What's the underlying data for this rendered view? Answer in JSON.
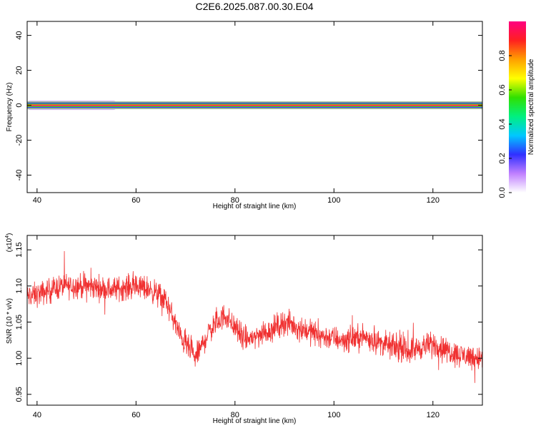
{
  "title": "C2E6.2025.087.00.30.E04",
  "colors": {
    "signal": "#f03030",
    "axis": "#000000",
    "band_line": "#2a6e2a"
  },
  "chart_data": [
    {
      "type": "heatmap",
      "xlabel": "Height of straight line (km)",
      "ylabel": "Frequency (Hz)",
      "xlim": [
        38,
        130
      ],
      "ylim": [
        -50,
        48
      ],
      "x_ticks": [
        40,
        60,
        80,
        100,
        120
      ],
      "y_ticks": [
        -40,
        -20,
        0,
        20,
        40
      ],
      "grid": false,
      "colorbar": {
        "label": "Normalized spectral amplitude",
        "range": [
          0,
          1
        ],
        "ticks": [
          0.0,
          0.2,
          0.4,
          0.6,
          0.8
        ],
        "tick_labels": [
          "0.0",
          "0.2",
          "0.4",
          "0.6",
          "0.8"
        ],
        "colormap": [
          "#ffffff",
          "#c080ff",
          "#3030ff",
          "#00c8ff",
          "#00f080",
          "#30e000",
          "#ffff00",
          "#ffa000",
          "#ff2020",
          "#ff0080"
        ]
      },
      "band": {
        "center_freq": 0,
        "halfwidth_by_amplitude": [
          {
            "amplitude": 0.05,
            "halfwidth": 2.2
          },
          {
            "amplitude": 0.2,
            "halfwidth": 1.4
          },
          {
            "amplitude": 0.5,
            "halfwidth": 0.9
          },
          {
            "amplitude": 0.8,
            "halfwidth": 0.5
          },
          {
            "amplitude": 1.0,
            "halfwidth": 0.25
          }
        ],
        "spread_x_range": [
          38,
          56
        ],
        "spread_extra_halfwidth": 1.5,
        "outline_freqs": [
          -1.8,
          1.8
        ]
      }
    },
    {
      "type": "line",
      "xlabel": "Height of straight line (km)",
      "ylabel": "SNR (10 * v/v)",
      "y_multiplier": {
        "base": "(x10",
        "exponent": "4",
        "suffix": ")"
      },
      "xlim": [
        38,
        130
      ],
      "ylim": [
        0.935,
        1.17
      ],
      "x_ticks": [
        40,
        60,
        80,
        100,
        120
      ],
      "y_ticks": [
        0.95,
        1.0,
        1.05,
        1.1,
        1.15
      ],
      "y_tick_labels": [
        "0.95",
        "1.00",
        "1.05",
        "1.10",
        "1.15"
      ],
      "grid": false,
      "series": [
        {
          "color": "#f03030",
          "trend_x": [
            38,
            41,
            45,
            50,
            55,
            60,
            63,
            66,
            69,
            72,
            75,
            78,
            82,
            86,
            90,
            94,
            98,
            102,
            106,
            110,
            115,
            120,
            125,
            130
          ],
          "trend_y": [
            1.085,
            1.09,
            1.1,
            1.1,
            1.095,
            1.1,
            1.095,
            1.08,
            1.03,
            1.0,
            1.04,
            1.06,
            1.025,
            1.035,
            1.05,
            1.04,
            1.03,
            1.025,
            1.03,
            1.02,
            1.01,
            1.02,
            1.005,
            1.0
          ],
          "noise_amplitude": 0.025,
          "n_samples": 1800
        }
      ]
    }
  ]
}
